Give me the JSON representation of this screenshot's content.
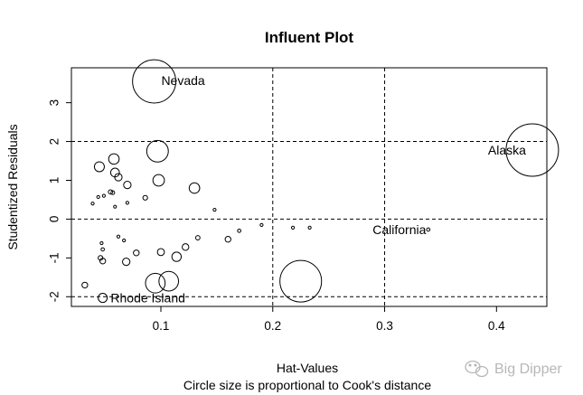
{
  "chart_data": {
    "type": "scatter",
    "title": "Influent Plot",
    "xlabel": "Hat-Values",
    "sublabel": "Circle size is proportional to Cook's distance",
    "ylabel": "Studentized Residuals",
    "xlim": [
      0.02,
      0.445
    ],
    "ylim": [
      -2.25,
      3.9
    ],
    "xticks": [
      0.1,
      0.2,
      0.3,
      0.4
    ],
    "xtick_labels": [
      "0.1",
      "0.2",
      "0.3",
      "0.4"
    ],
    "yticks": [
      -2,
      -1,
      0,
      1,
      2,
      3
    ],
    "ytick_labels": [
      "-2",
      "-1",
      "0",
      "1",
      "2",
      "3"
    ],
    "reference_lines": {
      "vertical": [
        0.2,
        0.3
      ],
      "horizontal": [
        -2,
        0,
        2
      ]
    },
    "grid": false,
    "points": [
      {
        "x": 0.094,
        "y": 3.55,
        "cook": 0.68,
        "label": "Nevada"
      },
      {
        "x": 0.432,
        "y": 1.78,
        "cook": 1.0,
        "label": "Alaska"
      },
      {
        "x": 0.339,
        "y": -0.27,
        "cook": 0.004,
        "label": "California"
      },
      {
        "x": 0.048,
        "y": -2.03,
        "cook": 0.03,
        "label": "Rhode Island"
      },
      {
        "x": 0.225,
        "y": -1.6,
        "cook": 0.63,
        "label": ""
      },
      {
        "x": 0.097,
        "y": 1.75,
        "cook": 0.17,
        "label": ""
      },
      {
        "x": 0.095,
        "y": -1.65,
        "cook": 0.14,
        "label": ""
      },
      {
        "x": 0.107,
        "y": -1.6,
        "cook": 0.14,
        "label": ""
      },
      {
        "x": 0.058,
        "y": 1.55,
        "cook": 0.04,
        "label": ""
      },
      {
        "x": 0.045,
        "y": 1.35,
        "cook": 0.036,
        "label": ""
      },
      {
        "x": 0.059,
        "y": 1.2,
        "cook": 0.028,
        "label": ""
      },
      {
        "x": 0.062,
        "y": 1.08,
        "cook": 0.02,
        "label": ""
      },
      {
        "x": 0.098,
        "y": 1.0,
        "cook": 0.048,
        "label": ""
      },
      {
        "x": 0.07,
        "y": 0.88,
        "cook": 0.02,
        "label": ""
      },
      {
        "x": 0.13,
        "y": 0.8,
        "cook": 0.04,
        "label": ""
      },
      {
        "x": 0.055,
        "y": 0.7,
        "cook": 0.007,
        "label": ""
      },
      {
        "x": 0.057,
        "y": 0.68,
        "cook": 0.005,
        "label": ""
      },
      {
        "x": 0.049,
        "y": 0.6,
        "cook": 0.003,
        "label": ""
      },
      {
        "x": 0.044,
        "y": 0.57,
        "cook": 0.002,
        "label": ""
      },
      {
        "x": 0.086,
        "y": 0.55,
        "cook": 0.008,
        "label": ""
      },
      {
        "x": 0.07,
        "y": 0.42,
        "cook": 0.002,
        "label": ""
      },
      {
        "x": 0.039,
        "y": 0.4,
        "cook": 0.001,
        "label": ""
      },
      {
        "x": 0.059,
        "y": 0.32,
        "cook": 0.001,
        "label": ""
      },
      {
        "x": 0.148,
        "y": 0.24,
        "cook": 0.002,
        "label": ""
      },
      {
        "x": 0.19,
        "y": -0.15,
        "cook": 0.001,
        "label": ""
      },
      {
        "x": 0.218,
        "y": -0.22,
        "cook": 0.001,
        "label": ""
      },
      {
        "x": 0.233,
        "y": -0.22,
        "cook": 0.001,
        "label": ""
      },
      {
        "x": 0.17,
        "y": -0.3,
        "cook": 0.004,
        "label": ""
      },
      {
        "x": 0.062,
        "y": -0.45,
        "cook": 0.001,
        "label": ""
      },
      {
        "x": 0.133,
        "y": -0.48,
        "cook": 0.007,
        "label": ""
      },
      {
        "x": 0.16,
        "y": -0.52,
        "cook": 0.012,
        "label": ""
      },
      {
        "x": 0.067,
        "y": -0.55,
        "cook": 0.003,
        "label": ""
      },
      {
        "x": 0.047,
        "y": -0.62,
        "cook": 0.002,
        "label": ""
      },
      {
        "x": 0.122,
        "y": -0.72,
        "cook": 0.016,
        "label": ""
      },
      {
        "x": 0.048,
        "y": -0.78,
        "cook": 0.004,
        "label": ""
      },
      {
        "x": 0.1,
        "y": -0.85,
        "cook": 0.018,
        "label": ""
      },
      {
        "x": 0.078,
        "y": -0.87,
        "cook": 0.012,
        "label": ""
      },
      {
        "x": 0.114,
        "y": -0.97,
        "cook": 0.032,
        "label": ""
      },
      {
        "x": 0.046,
        "y": -1.0,
        "cook": 0.008,
        "label": ""
      },
      {
        "x": 0.048,
        "y": -1.08,
        "cook": 0.012,
        "label": ""
      },
      {
        "x": 0.069,
        "y": -1.1,
        "cook": 0.02,
        "label": ""
      },
      {
        "x": 0.032,
        "y": -1.7,
        "cook": 0.012,
        "label": ""
      }
    ]
  },
  "watermark": {
    "text": "Big Dipper",
    "color": "#b7b7b7"
  }
}
